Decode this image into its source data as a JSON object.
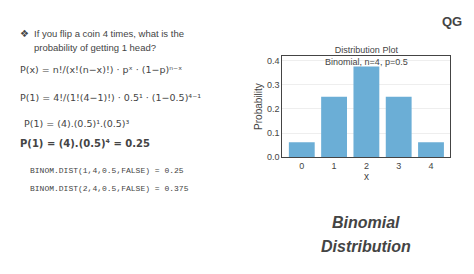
{
  "chart_data": {
    "type": "bar",
    "title": "Distribution Plot",
    "subtitle": "Binomial, n=4, p=0.5",
    "x": [
      0,
      1,
      2,
      3,
      4
    ],
    "values": [
      0.0625,
      0.25,
      0.375,
      0.25,
      0.0625
    ],
    "color": "#6baed6",
    "xlabel": "x",
    "ylabel": "Probability",
    "xlim": [
      -0.6,
      4.6
    ],
    "xticks": [
      0,
      1,
      2,
      3,
      4
    ],
    "ylim": [
      0,
      0.42
    ],
    "yticks": [
      {
        "value": 0,
        "label": "0.0"
      },
      0.1,
      0.2,
      0.3,
      0.4
    ],
    "grid": "y",
    "annotations": [
      "QG",
      "❖",
      "If you flip a coin 4 times, what is the",
      "probability of getting 1 head?",
      "P(x) = n!/(x!(n−x)!) · pˣ · (1−p)ⁿ⁻ˣ",
      "P(1) = 4!/(1!(4−1)!) · 0.5¹ · (1−0.5)⁴⁻¹",
      "P(1) = (4).(0.5)¹.(0.5)³",
      "P(1) = (4).(0.5)⁴ = 0.25",
      "BINOM.DIST(1,4,0.5,FALSE) = 0.25",
      "BINOM.DIST(2,4,0.5,FALSE) = 0.375",
      "Binomial",
      "Distribution"
    ]
  }
}
